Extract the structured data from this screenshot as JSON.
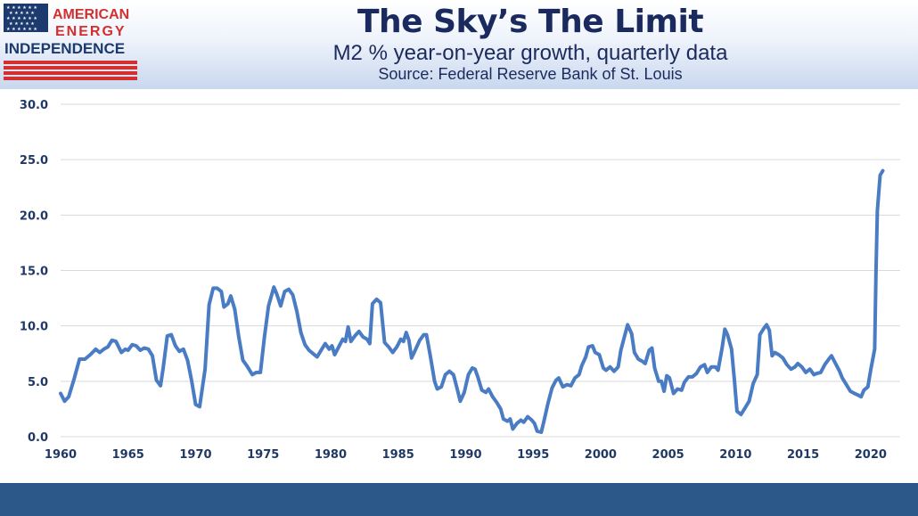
{
  "header": {
    "title": "The Sky’s The Limit",
    "subtitle": "M2 % year-on-year growth, quarterly data",
    "source": "Source: Federal Reserve Bank of St. Louis"
  },
  "logo": {
    "line1": "AMERICAN",
    "line2": "ENERGY",
    "line3": "INDEPENDENCE"
  },
  "colors": {
    "line": "#4a7cc4",
    "title": "#1b2a5e",
    "logo_red": "#d32f2f",
    "logo_blue": "#1d3a6e",
    "footer": "#2c5889"
  },
  "chart_data": {
    "type": "line",
    "title": "",
    "xlabel": "",
    "ylabel": "",
    "xlim": [
      1960,
      2020.9
    ],
    "ylim": [
      0,
      30
    ],
    "grid": true,
    "x_ticks": [
      "1960",
      "1965",
      "1970",
      "1975",
      "1980",
      "1985",
      "1990",
      "1995",
      "2000",
      "2005",
      "2010",
      "2015",
      "2020"
    ],
    "y_ticks": [
      "0.0",
      "5.0",
      "10.0",
      "15.0",
      "20.0",
      "25.0",
      "30.0"
    ],
    "series": [
      {
        "name": "",
        "points": [
          [
            1960.0,
            3.9
          ],
          [
            1960.3,
            3.2
          ],
          [
            1960.6,
            3.6
          ],
          [
            1961.0,
            5.2
          ],
          [
            1961.4,
            7.0
          ],
          [
            1961.8,
            7.0
          ],
          [
            1962.2,
            7.4
          ],
          [
            1962.6,
            7.9
          ],
          [
            1962.9,
            7.6
          ],
          [
            1963.2,
            7.9
          ],
          [
            1963.5,
            8.1
          ],
          [
            1963.8,
            8.7
          ],
          [
            1964.1,
            8.6
          ],
          [
            1964.5,
            7.6
          ],
          [
            1964.8,
            7.9
          ],
          [
            1965.0,
            7.8
          ],
          [
            1965.3,
            8.3
          ],
          [
            1965.6,
            8.2
          ],
          [
            1965.9,
            7.8
          ],
          [
            1966.2,
            8.0
          ],
          [
            1966.5,
            7.9
          ],
          [
            1966.8,
            7.3
          ],
          [
            1967.1,
            5.1
          ],
          [
            1967.4,
            4.6
          ],
          [
            1967.6,
            6.2
          ],
          [
            1967.9,
            9.1
          ],
          [
            1968.2,
            9.2
          ],
          [
            1968.5,
            8.2
          ],
          [
            1968.8,
            7.7
          ],
          [
            1969.1,
            7.9
          ],
          [
            1969.4,
            6.9
          ],
          [
            1969.7,
            5.1
          ],
          [
            1970.0,
            2.9
          ],
          [
            1970.3,
            2.7
          ],
          [
            1970.7,
            6.1
          ],
          [
            1971.0,
            11.9
          ],
          [
            1971.3,
            13.4
          ],
          [
            1971.6,
            13.4
          ],
          [
            1971.9,
            13.1
          ],
          [
            1972.1,
            11.7
          ],
          [
            1972.4,
            12.0
          ],
          [
            1972.6,
            12.7
          ],
          [
            1972.9,
            11.5
          ],
          [
            1973.2,
            9.0
          ],
          [
            1973.5,
            6.9
          ],
          [
            1973.8,
            6.4
          ],
          [
            1974.2,
            5.6
          ],
          [
            1974.5,
            5.8
          ],
          [
            1974.8,
            5.8
          ],
          [
            1975.1,
            9.0
          ],
          [
            1975.4,
            11.8
          ],
          [
            1975.8,
            13.5
          ],
          [
            1976.0,
            12.9
          ],
          [
            1976.3,
            11.8
          ],
          [
            1976.6,
            13.1
          ],
          [
            1976.9,
            13.3
          ],
          [
            1977.2,
            12.8
          ],
          [
            1977.5,
            11.3
          ],
          [
            1977.8,
            9.4
          ],
          [
            1978.1,
            8.3
          ],
          [
            1978.4,
            7.8
          ],
          [
            1978.7,
            7.5
          ],
          [
            1979.0,
            7.2
          ],
          [
            1979.3,
            7.8
          ],
          [
            1979.6,
            8.4
          ],
          [
            1979.9,
            7.9
          ],
          [
            1980.1,
            8.2
          ],
          [
            1980.3,
            7.4
          ],
          [
            1980.6,
            8.1
          ],
          [
            1980.9,
            8.8
          ],
          [
            1981.1,
            8.6
          ],
          [
            1981.3,
            9.9
          ],
          [
            1981.5,
            8.6
          ],
          [
            1981.8,
            9.1
          ],
          [
            1982.1,
            9.5
          ],
          [
            1982.4,
            9.0
          ],
          [
            1982.7,
            8.8
          ],
          [
            1982.9,
            8.4
          ],
          [
            1983.1,
            12.0
          ],
          [
            1983.4,
            12.4
          ],
          [
            1983.7,
            12.1
          ],
          [
            1984.0,
            8.5
          ],
          [
            1984.3,
            8.1
          ],
          [
            1984.6,
            7.6
          ],
          [
            1984.9,
            8.1
          ],
          [
            1985.2,
            8.8
          ],
          [
            1985.4,
            8.6
          ],
          [
            1985.6,
            9.4
          ],
          [
            1985.8,
            8.7
          ],
          [
            1986.0,
            7.1
          ],
          [
            1986.3,
            7.9
          ],
          [
            1986.6,
            8.7
          ],
          [
            1986.9,
            9.2
          ],
          [
            1987.1,
            9.2
          ],
          [
            1987.4,
            7.2
          ],
          [
            1987.7,
            5.0
          ],
          [
            1987.9,
            4.3
          ],
          [
            1988.2,
            4.5
          ],
          [
            1988.5,
            5.6
          ],
          [
            1988.8,
            5.9
          ],
          [
            1989.1,
            5.6
          ],
          [
            1989.4,
            4.2
          ],
          [
            1989.6,
            3.2
          ],
          [
            1989.9,
            4.0
          ],
          [
            1990.2,
            5.6
          ],
          [
            1990.5,
            6.2
          ],
          [
            1990.7,
            6.1
          ],
          [
            1990.9,
            5.4
          ],
          [
            1991.2,
            4.2
          ],
          [
            1991.5,
            4.0
          ],
          [
            1991.7,
            4.3
          ],
          [
            1992.0,
            3.6
          ],
          [
            1992.3,
            3.1
          ],
          [
            1992.6,
            2.5
          ],
          [
            1992.8,
            1.6
          ],
          [
            1993.1,
            1.4
          ],
          [
            1993.3,
            1.6
          ],
          [
            1993.5,
            0.7
          ],
          [
            1993.8,
            1.2
          ],
          [
            1994.1,
            1.5
          ],
          [
            1994.3,
            1.3
          ],
          [
            1994.6,
            1.8
          ],
          [
            1994.9,
            1.5
          ],
          [
            1995.1,
            1.2
          ],
          [
            1995.3,
            0.5
          ],
          [
            1995.6,
            0.4
          ],
          [
            1995.8,
            1.4
          ],
          [
            1996.1,
            3.0
          ],
          [
            1996.4,
            4.4
          ],
          [
            1996.7,
            5.1
          ],
          [
            1996.9,
            5.3
          ],
          [
            1997.2,
            4.5
          ],
          [
            1997.5,
            4.7
          ],
          [
            1997.8,
            4.6
          ],
          [
            1998.1,
            5.3
          ],
          [
            1998.4,
            5.6
          ],
          [
            1998.6,
            6.4
          ],
          [
            1998.9,
            7.2
          ],
          [
            1999.1,
            8.1
          ],
          [
            1999.4,
            8.2
          ],
          [
            1999.6,
            7.6
          ],
          [
            1999.9,
            7.4
          ],
          [
            2000.2,
            6.2
          ],
          [
            2000.4,
            6.0
          ],
          [
            2000.7,
            6.3
          ],
          [
            2001.0,
            5.9
          ],
          [
            2001.3,
            6.3
          ],
          [
            2001.5,
            7.8
          ],
          [
            2001.8,
            9.2
          ],
          [
            2002.0,
            10.1
          ],
          [
            2002.3,
            9.3
          ],
          [
            2002.5,
            7.6
          ],
          [
            2002.8,
            7.0
          ],
          [
            2003.1,
            6.8
          ],
          [
            2003.3,
            6.6
          ],
          [
            2003.6,
            7.8
          ],
          [
            2003.8,
            8.0
          ],
          [
            2004.0,
            6.2
          ],
          [
            2004.3,
            5.0
          ],
          [
            2004.5,
            5.0
          ],
          [
            2004.7,
            4.1
          ],
          [
            2004.9,
            5.5
          ],
          [
            2005.1,
            5.3
          ],
          [
            2005.4,
            3.9
          ],
          [
            2005.7,
            4.3
          ],
          [
            2006.0,
            4.2
          ],
          [
            2006.2,
            4.9
          ],
          [
            2006.5,
            5.4
          ],
          [
            2006.8,
            5.4
          ],
          [
            2007.1,
            5.7
          ],
          [
            2007.4,
            6.3
          ],
          [
            2007.7,
            6.5
          ],
          [
            2007.9,
            5.8
          ],
          [
            2008.2,
            6.3
          ],
          [
            2008.5,
            6.3
          ],
          [
            2008.7,
            6.0
          ],
          [
            2009.0,
            8.0
          ],
          [
            2009.2,
            9.7
          ],
          [
            2009.4,
            9.2
          ],
          [
            2009.7,
            7.9
          ],
          [
            2009.9,
            5.2
          ],
          [
            2010.1,
            2.3
          ],
          [
            2010.4,
            2.0
          ],
          [
            2010.7,
            2.6
          ],
          [
            2011.0,
            3.2
          ],
          [
            2011.3,
            4.8
          ],
          [
            2011.6,
            5.6
          ],
          [
            2011.8,
            9.2
          ],
          [
            2012.1,
            9.8
          ],
          [
            2012.3,
            10.1
          ],
          [
            2012.5,
            9.6
          ],
          [
            2012.7,
            7.3
          ],
          [
            2012.9,
            7.6
          ],
          [
            2013.2,
            7.4
          ],
          [
            2013.5,
            7.1
          ],
          [
            2013.8,
            6.5
          ],
          [
            2014.1,
            6.1
          ],
          [
            2014.4,
            6.3
          ],
          [
            2014.6,
            6.6
          ],
          [
            2014.9,
            6.3
          ],
          [
            2015.2,
            5.8
          ],
          [
            2015.5,
            6.1
          ],
          [
            2015.8,
            5.6
          ],
          [
            2016.0,
            5.7
          ],
          [
            2016.3,
            5.8
          ],
          [
            2016.6,
            6.5
          ],
          [
            2016.9,
            7.0
          ],
          [
            2017.1,
            7.3
          ],
          [
            2017.4,
            6.6
          ],
          [
            2017.7,
            5.9
          ],
          [
            2017.9,
            5.3
          ],
          [
            2018.2,
            4.7
          ],
          [
            2018.5,
            4.1
          ],
          [
            2018.8,
            3.9
          ],
          [
            2019.0,
            3.8
          ],
          [
            2019.3,
            3.6
          ],
          [
            2019.5,
            4.2
          ],
          [
            2019.8,
            4.5
          ],
          [
            2020.0,
            6.0
          ],
          [
            2020.3,
            7.9
          ],
          [
            2020.4,
            15.0
          ],
          [
            2020.5,
            20.4
          ],
          [
            2020.7,
            23.6
          ],
          [
            2020.9,
            24.0
          ]
        ]
      }
    ]
  }
}
